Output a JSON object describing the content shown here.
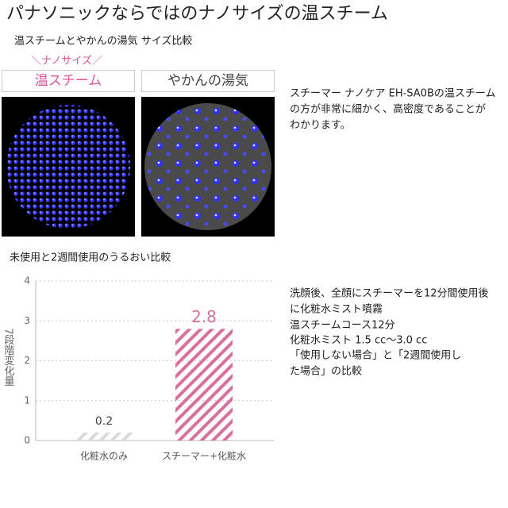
{
  "header": {
    "title": "パナソニックならではのナノサイズの温スチーム",
    "subtitle": "温スチームとやかんの湯気 サイズ比較"
  },
  "comparison": {
    "tagline": "＼ナノサイズ／",
    "labels": [
      "温スチーム",
      "やかんの湯気"
    ],
    "description": [
      "スチーマー ナノケア EH-SA0Bの温スチーム",
      "の方が非常に細かく、高密度であることが",
      "わかります。"
    ]
  },
  "chart_data": {
    "type": "bar",
    "title": "未使用と2週間使用のうるおい比較",
    "ylabel": "7段階変化量",
    "categories": [
      "化粧水のみ",
      "スチーマー+化粧水"
    ],
    "values": [
      0.2,
      2.8
    ],
    "colors": [
      "#d9d9d9",
      "#d9709c"
    ],
    "ylim": [
      0,
      4
    ],
    "yticks": [
      0,
      1,
      2,
      3,
      4
    ],
    "grid": true
  },
  "notes": [
    "洗顔後、全顔にスチーマーを12分間使用後",
    "に化粧水ミスト噴霧",
    "温スチームコース12分",
    "化粧水ミスト 1.5 cc～3.0 cc",
    "「使用しない場合」と「2週間使用し",
    "た場合」の比較"
  ]
}
